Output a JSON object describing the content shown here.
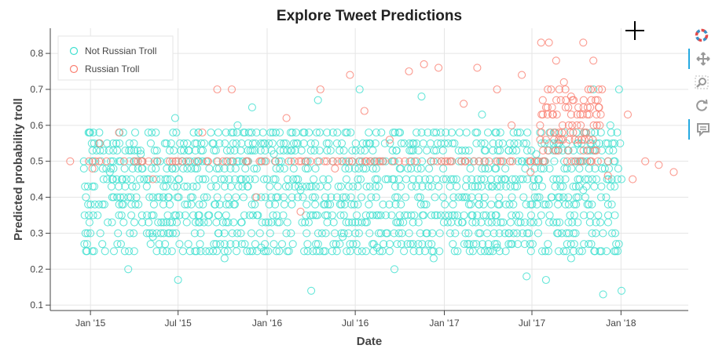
{
  "colors": {
    "not_troll": "#40e0d0",
    "troll": "#fa8072",
    "grid": "#e5e5e5",
    "axis": "#444444",
    "toolbar_active": "#26aae1"
  },
  "toolbar": {
    "items": [
      {
        "icon": "bokeh-logo-icon",
        "active": false
      },
      {
        "icon": "pan-icon",
        "active": true
      },
      {
        "icon": "box-zoom-icon",
        "active": false
      },
      {
        "icon": "reset-icon",
        "active": false
      },
      {
        "icon": "hover-icon",
        "active": true
      }
    ]
  },
  "chart_data": {
    "type": "scatter",
    "title": "Explore Tweet Predictions",
    "xlabel": "Date",
    "ylabel": "Predicted probability troll",
    "x_axis_type": "datetime",
    "xlim": [
      "2014-10-10",
      "2018-05-20"
    ],
    "ylim": [
      0.085,
      0.87
    ],
    "x_ticks": [
      {
        "date": "2015-01-01",
        "label": "Jan '15"
      },
      {
        "date": "2015-07-01",
        "label": "Jul '15"
      },
      {
        "date": "2016-01-01",
        "label": "Jan '16"
      },
      {
        "date": "2016-07-01",
        "label": "Jul '16"
      },
      {
        "date": "2017-01-01",
        "label": "Jan '17"
      },
      {
        "date": "2017-07-01",
        "label": "Jul '17"
      },
      {
        "date": "2018-01-01",
        "label": "Jan '18"
      }
    ],
    "y_ticks": [
      0.1,
      0.2,
      0.3,
      0.4,
      0.5,
      0.6,
      0.7,
      0.8
    ],
    "y_tick_labels": [
      "0.1",
      "0.2",
      "0.3",
      "0.4",
      "0.5",
      "0.6",
      "0.7",
      "0.8"
    ],
    "grid": true,
    "legend_position": "top-left",
    "marker": "hollow-circle",
    "series": [
      {
        "name": "Not Russian Troll",
        "color": "#40e0d0",
        "points": [
          [
            "2014-12-28",
            0.58
          ],
          [
            "2015-01-05",
            0.25
          ],
          [
            "2015-01-20",
            0.55
          ],
          [
            "2015-02-10",
            0.47
          ],
          [
            "2015-03-01",
            0.35
          ],
          [
            "2015-03-20",
            0.2
          ],
          [
            "2015-04-15",
            0.52
          ],
          [
            "2015-05-10",
            0.29
          ],
          [
            "2015-06-05",
            0.45
          ],
          [
            "2015-06-25",
            0.62
          ],
          [
            "2015-07-01",
            0.17
          ],
          [
            "2015-07-20",
            0.38
          ],
          [
            "2015-08-15",
            0.33
          ],
          [
            "2015-09-10",
            0.55
          ],
          [
            "2015-10-05",
            0.23
          ],
          [
            "2015-11-01",
            0.6
          ],
          [
            "2015-12-01",
            0.65
          ],
          [
            "2015-12-20",
            0.26
          ],
          [
            "2016-01-15",
            0.52
          ],
          [
            "2016-02-15",
            0.25
          ],
          [
            "2016-03-10",
            0.42
          ],
          [
            "2016-04-01",
            0.14
          ],
          [
            "2016-04-15",
            0.67
          ],
          [
            "2016-05-10",
            0.38
          ],
          [
            "2016-06-05",
            0.29
          ],
          [
            "2016-07-10",
            0.7
          ],
          [
            "2016-08-15",
            0.26
          ],
          [
            "2016-09-20",
            0.2
          ],
          [
            "2016-10-10",
            0.55
          ],
          [
            "2016-11-15",
            0.68
          ],
          [
            "2016-12-10",
            0.23
          ],
          [
            "2017-01-20",
            0.45
          ],
          [
            "2017-02-20",
            0.3
          ],
          [
            "2017-03-20",
            0.63
          ],
          [
            "2017-04-20",
            0.26
          ],
          [
            "2017-05-20",
            0.35
          ],
          [
            "2017-06-20",
            0.18
          ],
          [
            "2017-07-10",
            0.52
          ],
          [
            "2017-07-30",
            0.17
          ],
          [
            "2017-08-25",
            0.55
          ],
          [
            "2017-09-20",
            0.23
          ],
          [
            "2017-10-15",
            0.42
          ],
          [
            "2017-11-05",
            0.7
          ],
          [
            "2017-11-25",
            0.13
          ],
          [
            "2017-12-10",
            0.6
          ],
          [
            "2017-12-20",
            0.3
          ],
          [
            "2017-12-28",
            0.7
          ],
          [
            "2018-01-02",
            0.14
          ],
          [
            "2018-01-02",
            0.45
          ]
        ],
        "dense_bands": [
          {
            "from": "2014-12-20",
            "to": "2018-01-04",
            "levels": [
              0.25,
              0.27,
              0.3,
              0.33,
              0.35,
              0.38,
              0.4,
              0.43,
              0.45,
              0.48,
              0.5,
              0.53,
              0.55,
              0.58
            ]
          }
        ]
      },
      {
        "name": "Russian Troll",
        "color": "#fa8072",
        "points": [
          [
            "2014-11-20",
            0.5
          ],
          [
            "2015-01-05",
            0.48
          ],
          [
            "2015-01-20",
            0.55
          ],
          [
            "2015-03-01",
            0.58
          ],
          [
            "2015-05-10",
            0.45
          ],
          [
            "2015-08-20",
            0.58
          ],
          [
            "2015-09-20",
            0.7
          ],
          [
            "2015-10-20",
            0.7
          ],
          [
            "2015-12-10",
            0.4
          ],
          [
            "2016-02-10",
            0.62
          ],
          [
            "2016-03-10",
            0.36
          ],
          [
            "2016-04-20",
            0.7
          ],
          [
            "2016-05-20",
            0.48
          ],
          [
            "2016-06-20",
            0.74
          ],
          [
            "2016-07-20",
            0.64
          ],
          [
            "2016-09-10",
            0.56
          ],
          [
            "2016-10-20",
            0.75
          ],
          [
            "2016-11-20",
            0.77
          ],
          [
            "2016-12-20",
            0.76
          ],
          [
            "2017-02-10",
            0.66
          ],
          [
            "2017-03-10",
            0.76
          ],
          [
            "2017-04-20",
            0.7
          ],
          [
            "2017-05-20",
            0.6
          ],
          [
            "2017-06-10",
            0.74
          ],
          [
            "2017-06-28",
            0.47
          ],
          [
            "2017-07-20",
            0.83
          ],
          [
            "2017-08-05",
            0.83
          ],
          [
            "2017-08-20",
            0.78
          ],
          [
            "2017-09-05",
            0.72
          ],
          [
            "2017-09-20",
            0.68
          ],
          [
            "2017-10-15",
            0.83
          ],
          [
            "2017-11-05",
            0.78
          ],
          [
            "2017-12-05",
            0.46
          ],
          [
            "2018-01-15",
            0.63
          ],
          [
            "2018-01-25",
            0.45
          ],
          [
            "2018-02-20",
            0.5
          ],
          [
            "2018-03-20",
            0.49
          ],
          [
            "2018-04-20",
            0.47
          ]
        ],
        "dense_bands": [
          {
            "from": "2015-01-01",
            "to": "2017-12-20",
            "levels": [
              0.5
            ]
          },
          {
            "from": "2017-07-20",
            "to": "2017-11-20",
            "levels": [
              0.53,
              0.56,
              0.58,
              0.6,
              0.63,
              0.65,
              0.67,
              0.7
            ]
          }
        ]
      }
    ]
  }
}
